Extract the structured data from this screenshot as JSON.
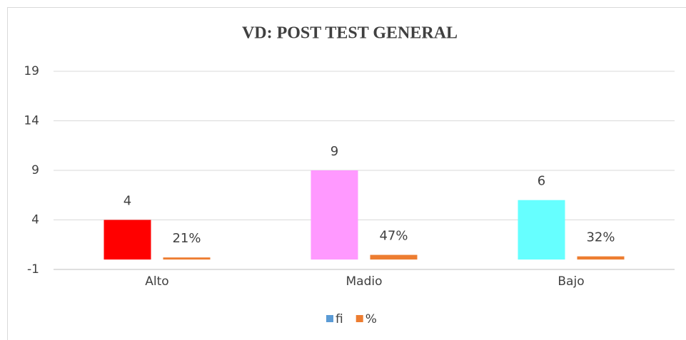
{
  "chart_data": {
    "type": "bar",
    "title": "VD: POST TEST GENERAL",
    "categories": [
      "Alto",
      "Madio",
      "Bajo"
    ],
    "series": [
      {
        "name": "fi",
        "color": "#5b9bd5",
        "point_colors": [
          "#ff0000",
          "#ff99ff",
          "#66ffff"
        ],
        "values": [
          4,
          9,
          6
        ]
      },
      {
        "name": "%",
        "color": "#ed7d31",
        "values": [
          0.21,
          0.47,
          0.32
        ],
        "value_labels": [
          "21%",
          "47%",
          "32%"
        ]
      }
    ],
    "ylim": [
      -1,
      19
    ],
    "yticks": [
      -1,
      4,
      9,
      14,
      19
    ],
    "grid": true,
    "legend": "bottom"
  }
}
